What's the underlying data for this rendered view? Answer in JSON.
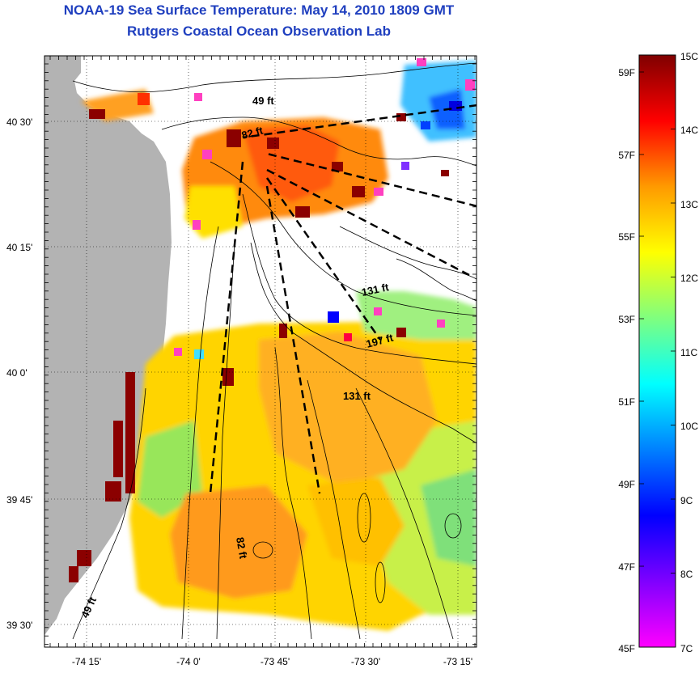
{
  "header": {
    "title": "NOAA-19 Sea Surface Temperature:  May 14, 2010 1809 GMT",
    "subtitle": "Rutgers Coastal Ocean Observation Lab"
  },
  "map": {
    "lat_ticks": [
      "40 30'",
      "40 15'",
      "40 0'",
      "39 45'",
      "39 30'"
    ],
    "lon_ticks": [
      "-74 15'",
      "-74 0'",
      "-73 45'",
      "-73 30'",
      "-73 15'"
    ],
    "depth_labels": [
      "49 ft",
      "82 ft",
      "131 ft",
      "197 ft",
      "131 ft",
      "82 ft",
      "49 ft"
    ],
    "land_color": "#b3b3b3",
    "contour_color": "#000000",
    "transect_style": "dashed"
  },
  "colorbar": {
    "celsius_labels": [
      "15C",
      "14C",
      "13C",
      "12C",
      "11C",
      "10C",
      "9C",
      "8C",
      "7C"
    ],
    "fahrenheit_labels": [
      "59F",
      "57F",
      "55F",
      "53F",
      "51F",
      "49F",
      "47F",
      "45F"
    ],
    "colors": [
      "#7f0000",
      "#ff0000",
      "#ff9a00",
      "#ffff00",
      "#7fff7f",
      "#00ffff",
      "#0080ff",
      "#0000ff",
      "#7f00ff",
      "#ff00ff"
    ]
  }
}
